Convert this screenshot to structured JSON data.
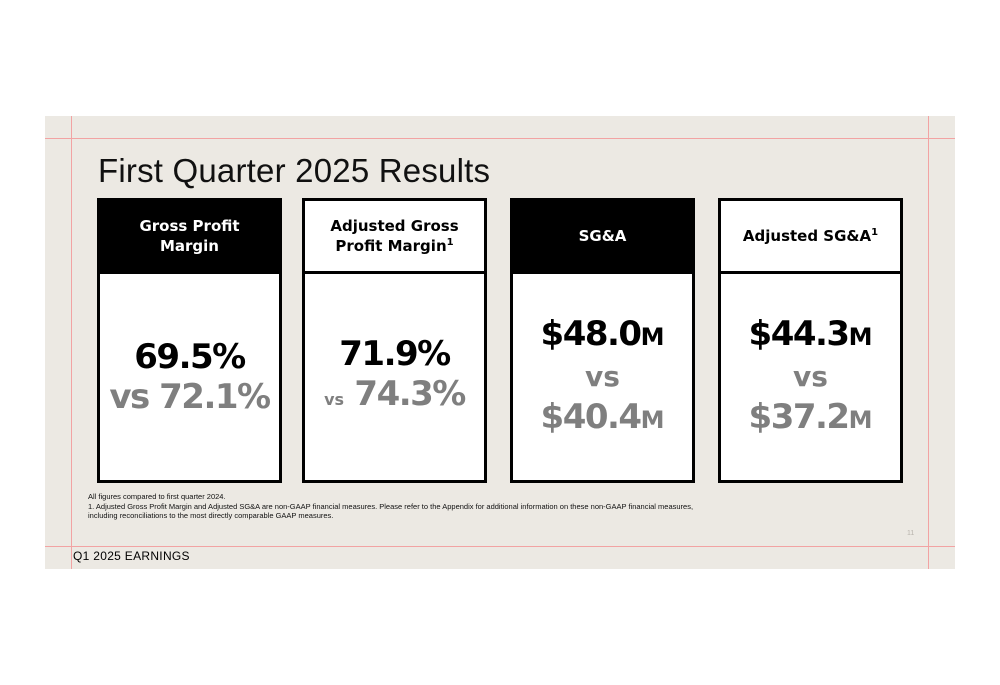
{
  "slide": {
    "title": "First Quarter 2025 Results",
    "footer": "Q1 2025 EARNINGS",
    "page_number": "11"
  },
  "cards": [
    {
      "header": "Gross Profit Margin",
      "header_style": "dark",
      "value": "69.5%",
      "vs": "vs",
      "comparison": "72.1%"
    },
    {
      "header": "Adjusted Gross Profit Margin",
      "footnote_ref": "1",
      "header_style": "light",
      "value": "71.9%",
      "vs": "vs",
      "comparison": "74.3%"
    },
    {
      "header": "SG&A",
      "header_style": "dark",
      "value": "$48.0",
      "value_unit": "M",
      "vs": "vs",
      "comparison": "$40.4",
      "comparison_unit": "M"
    },
    {
      "header": "Adjusted SG&A",
      "footnote_ref": "1",
      "header_style": "light",
      "value": "$44.3",
      "value_unit": "M",
      "vs": "vs",
      "comparison": "$37.2",
      "comparison_unit": "M"
    }
  ],
  "notes": {
    "line1": "All figures compared to first quarter 2024.",
    "line2": "1.  Adjusted Gross Profit Margin and Adjusted SG&A are non-GAAP financial measures. Please refer to the Appendix for additional information on these non-GAAP financial measures,",
    "line3": "including reconciliations to the most directly comparable GAAP measures."
  },
  "colors": {
    "background": "#ece9e3",
    "dark_header": "#000000",
    "comparison_text": "#7f7f7f",
    "guide_lines": "#f2a3a3"
  }
}
